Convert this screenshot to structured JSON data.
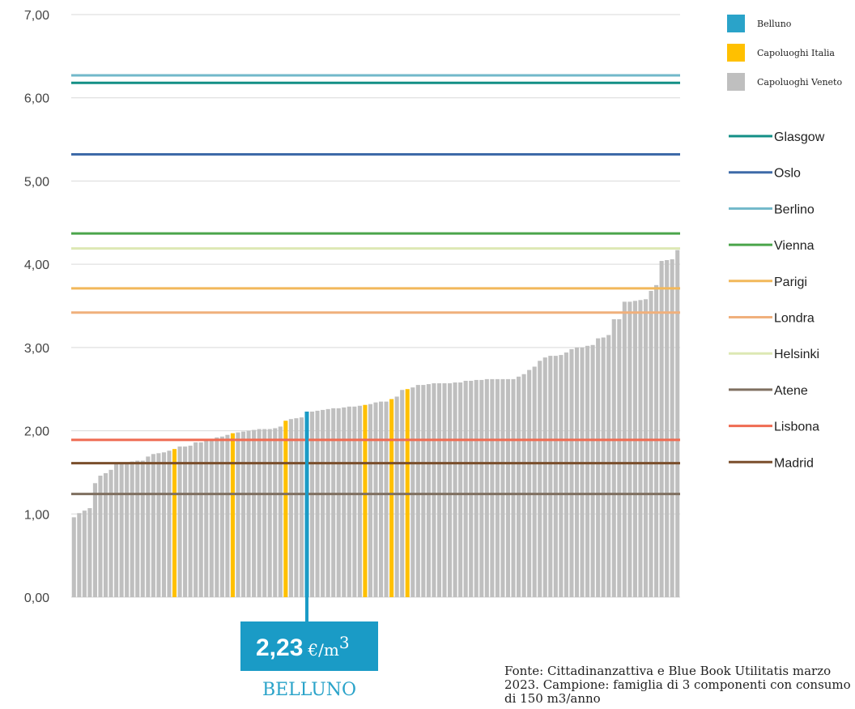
{
  "chart_data": {
    "type": "bar",
    "title": "",
    "xlabel": "",
    "ylabel": "",
    "ylim": [
      0,
      7
    ],
    "y_ticks": [
      "0,00",
      "1,00",
      "2,00",
      "3,00",
      "4,00",
      "5,00",
      "6,00",
      "7,00"
    ],
    "grid": true,
    "legend_position": "right",
    "bar_series": [
      {
        "name": "Belluno",
        "color": "#2aa3c9"
      },
      {
        "name": "Capoluoghi Italia",
        "color": "#ffc000"
      },
      {
        "name": "Capoluoghi Veneto",
        "color": "#bfbfbf"
      }
    ],
    "values": [
      0.96,
      1.01,
      1.04,
      1.07,
      1.37,
      1.46,
      1.49,
      1.53,
      1.62,
      1.62,
      1.62,
      1.63,
      1.64,
      1.64,
      1.69,
      1.72,
      1.73,
      1.74,
      1.76,
      1.78,
      1.81,
      1.81,
      1.82,
      1.86,
      1.86,
      1.88,
      1.9,
      1.92,
      1.93,
      1.95,
      1.97,
      1.98,
      1.99,
      2.0,
      2.01,
      2.02,
      2.02,
      2.02,
      2.03,
      2.05,
      2.12,
      2.14,
      2.15,
      2.16,
      2.23,
      2.23,
      2.24,
      2.25,
      2.26,
      2.27,
      2.27,
      2.28,
      2.29,
      2.29,
      2.3,
      2.31,
      2.32,
      2.34,
      2.35,
      2.35,
      2.38,
      2.41,
      2.49,
      2.5,
      2.52,
      2.55,
      2.55,
      2.56,
      2.57,
      2.57,
      2.57,
      2.57,
      2.58,
      2.58,
      2.6,
      2.6,
      2.61,
      2.61,
      2.62,
      2.62,
      2.62,
      2.62,
      2.62,
      2.62,
      2.65,
      2.68,
      2.73,
      2.77,
      2.84,
      2.88,
      2.9,
      2.9,
      2.91,
      2.94,
      2.98,
      3.0,
      3.0,
      3.02,
      3.03,
      3.11,
      3.12,
      3.15,
      3.34,
      3.34,
      3.55,
      3.55,
      3.56,
      3.57,
      3.58,
      3.68,
      3.75,
      4.04,
      4.05,
      4.06,
      4.17
    ],
    "highlight_italia_indices": [
      19,
      30,
      40,
      55,
      60,
      63
    ],
    "highlight_belluno_index": 44,
    "reference_lines": [
      {
        "name": "Glasgow",
        "value": 6.18,
        "color": "#138f86"
      },
      {
        "name": "Oslo",
        "value": 5.32,
        "color": "#3e6aa8"
      },
      {
        "name": "Berlino",
        "value": 6.27,
        "color": "#72b8ca"
      },
      {
        "name": "Vienna",
        "value": 4.37,
        "color": "#4aa54a"
      },
      {
        "name": "Parigi",
        "value": 3.71,
        "color": "#f2b85a"
      },
      {
        "name": "Londra",
        "value": 3.42,
        "color": "#f0b07c"
      },
      {
        "name": "Helsinki",
        "value": 4.19,
        "color": "#dde8b4"
      },
      {
        "name": "Atene",
        "value": 1.24,
        "color": "#7f6f60"
      },
      {
        "name": "Lisbona",
        "value": 1.89,
        "color": "#ef6b52"
      },
      {
        "name": "Madrid",
        "value": 1.61,
        "color": "#7a4e2b"
      }
    ],
    "callout": {
      "value": "2,23",
      "unit": "€/m",
      "unit_sup": "3",
      "name": "BELLUNO",
      "color": "#1a9bc6"
    }
  },
  "source_note": "Fonte: Cittadinanzattiva e Blue Book Utilitatis marzo 2023. Campione: famiglia di 3 componenti con consumo di 150 m3/anno"
}
